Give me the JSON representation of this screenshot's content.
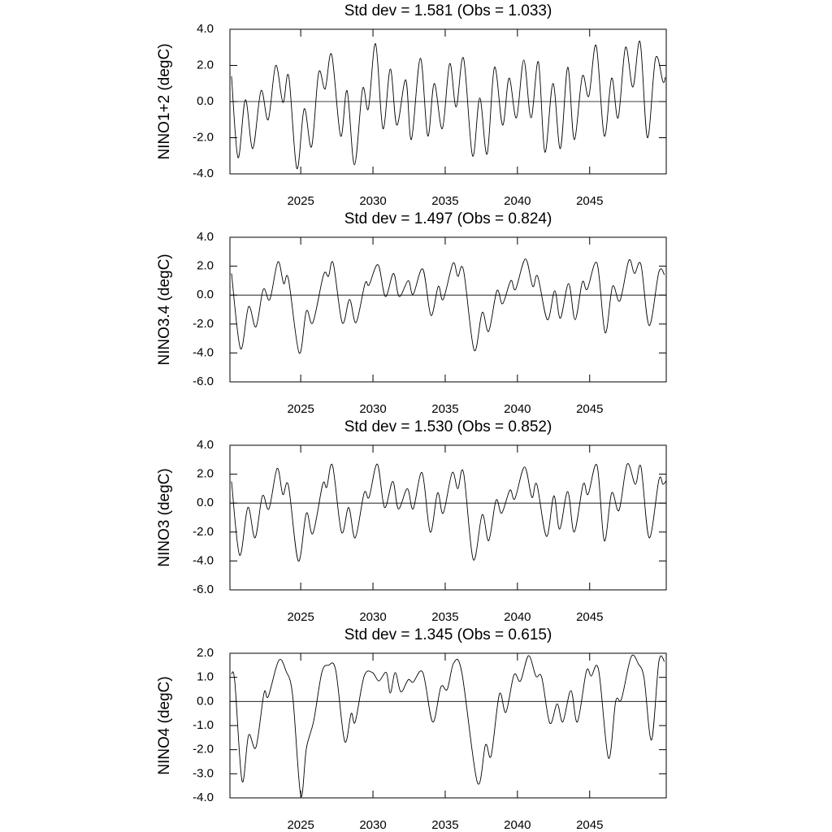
{
  "chart_data": [
    {
      "type": "line",
      "title": "Std dev = 1.581 (Obs = 1.033)",
      "y_label": "NINO1+2 (degC)",
      "color": "#000000",
      "xlim": [
        2020.1,
        2050.3
      ],
      "ylim": [
        -4,
        4
      ],
      "hline": 0,
      "xticks": [
        2025,
        2030,
        2035,
        2040,
        2045
      ],
      "yticks": [
        {
          "value": -4,
          "label": "-4.0"
        },
        {
          "value": -2,
          "label": "-2.0"
        },
        {
          "value": 0,
          "label": "0.0"
        },
        {
          "value": 2,
          "label": "2.0"
        },
        {
          "value": 4,
          "label": "4.0"
        }
      ],
      "x": [
        2020.21,
        2020.66,
        2021.17,
        2021.68,
        2022.25,
        2022.75,
        2023.27,
        2023.77,
        2024.17,
        2024.73,
        2025.24,
        2025.75,
        2026.24,
        2026.69,
        2027.14,
        2027.76,
        2028.21,
        2028.72,
        2029.28,
        2029.68,
        2030.18,
        2030.69,
        2031.2,
        2031.65,
        2032.27,
        2032.66,
        2033.28,
        2033.79,
        2034.24,
        2034.8,
        2035.31,
        2035.76,
        2036.27,
        2036.89,
        2037.39,
        2037.9,
        2038.41,
        2038.97,
        2039.42,
        2039.93,
        2040.44,
        2040.94,
        2041.45,
        2041.9,
        2042.46,
        2042.97,
        2043.48,
        2043.93,
        2044.49,
        2044.94,
        2045.45,
        2046.01,
        2046.52,
        2046.97,
        2047.48,
        2047.99,
        2048.49,
        2049.0,
        2049.56,
        2050.07,
        2050.24
      ],
      "values": [
        1.4,
        -3.1,
        0.1,
        -2.6,
        0.6,
        -1.0,
        2.0,
        -0.05,
        1.4,
        -3.7,
        -0.4,
        -2.5,
        1.6,
        0.7,
        2.6,
        -1.9,
        0.6,
        -3.5,
        0.7,
        -0.4,
        3.2,
        -1.5,
        1.8,
        -1.3,
        1.2,
        -2.1,
        2.4,
        -1.9,
        1.0,
        -1.5,
        2.1,
        -0.3,
        2.4,
        -3.0,
        0.2,
        -2.9,
        1.9,
        -1.3,
        1.3,
        -0.9,
        2.3,
        -0.9,
        2.2,
        -2.8,
        1.0,
        -2.6,
        1.9,
        -2.1,
        1.4,
        0.3,
        3.1,
        -1.9,
        1.3,
        -0.9,
        3.0,
        0.8,
        3.3,
        -2.0,
        2.4,
        1.1,
        1.35
      ]
    },
    {
      "type": "line",
      "title": "Std dev = 1.497 (Obs = 0.824)",
      "y_label": "NINO3.4 (degC)",
      "color": "#000000",
      "xlim": [
        2020.1,
        2050.3
      ],
      "ylim": [
        -6,
        4
      ],
      "hline": 0,
      "xticks": [
        2025,
        2030,
        2035,
        2040,
        2045
      ],
      "yticks": [
        {
          "value": -6,
          "label": "-6.0"
        },
        {
          "value": -4,
          "label": "-4.0"
        },
        {
          "value": -2,
          "label": "-2.0"
        },
        {
          "value": 0,
          "label": "0.0"
        },
        {
          "value": 2,
          "label": "2.0"
        },
        {
          "value": 4,
          "label": "4.0"
        }
      ],
      "x": [
        2020.21,
        2020.83,
        2021.39,
        2021.9,
        2022.41,
        2022.86,
        2023.42,
        2023.82,
        2024.15,
        2024.89,
        2025.39,
        2025.84,
        2026.58,
        2026.92,
        2027.25,
        2027.87,
        2028.38,
        2028.83,
        2029.45,
        2029.73,
        2030.35,
        2030.86,
        2031.42,
        2031.82,
        2032.44,
        2032.78,
        2033.45,
        2034.01,
        2034.52,
        2034.86,
        2035.54,
        2035.87,
        2036.27,
        2037.0,
        2037.56,
        2038.01,
        2038.58,
        2038.97,
        2039.54,
        2039.87,
        2040.55,
        2041.06,
        2041.4,
        2042.07,
        2042.58,
        2042.97,
        2043.54,
        2043.99,
        2044.49,
        2044.83,
        2045.51,
        2046.07,
        2046.58,
        2047.09,
        2047.71,
        2048.1,
        2048.55,
        2049.12,
        2049.79,
        2050.18
      ],
      "values": [
        1.5,
        -3.7,
        -0.8,
        -2.2,
        0.4,
        -0.3,
        2.3,
        0.8,
        1.1,
        -4.0,
        -1.1,
        -1.9,
        1.4,
        1.3,
        2.2,
        -1.9,
        -0.3,
        -1.9,
        0.8,
        0.7,
        2.1,
        -0.1,
        1.5,
        -0.1,
        1.0,
        0.05,
        1.8,
        -1.4,
        0.6,
        -0.3,
        2.2,
        1.3,
        1.7,
        -3.8,
        -1.2,
        -2.5,
        0.3,
        -0.6,
        1.0,
        0.4,
        2.5,
        0.6,
        1.3,
        -1.7,
        0.3,
        -1.6,
        0.8,
        -1.7,
        0.9,
        0.4,
        2.2,
        -2.6,
        0.6,
        -0.4,
        2.4,
        1.5,
        2.1,
        -2.1,
        1.6,
        1.4
      ]
    },
    {
      "type": "line",
      "title": "Std dev = 1.530 (Obs = 0.852)",
      "y_label": "NINO3 (degC)",
      "color": "#000000",
      "xlim": [
        2020.1,
        2050.3
      ],
      "ylim": [
        -6,
        4
      ],
      "hline": 0,
      "xticks": [
        2025,
        2030,
        2035,
        2040,
        2045
      ],
      "yticks": [
        {
          "value": -6,
          "label": "-6.0"
        },
        {
          "value": -4,
          "label": "-4.0"
        },
        {
          "value": -2,
          "label": "-2.0"
        },
        {
          "value": 0,
          "label": "0.0"
        },
        {
          "value": 2,
          "label": "2.0"
        },
        {
          "value": 4,
          "label": "4.0"
        }
      ],
      "x": [
        2020.21,
        2020.77,
        2021.34,
        2021.84,
        2022.35,
        2022.8,
        2023.37,
        2023.76,
        2024.15,
        2024.83,
        2025.39,
        2025.84,
        2026.52,
        2026.8,
        2027.2,
        2027.82,
        2028.32,
        2028.77,
        2029.39,
        2029.73,
        2030.3,
        2030.8,
        2031.37,
        2031.76,
        2032.38,
        2032.78,
        2033.4,
        2033.96,
        2034.47,
        2034.86,
        2035.48,
        2035.87,
        2036.27,
        2036.94,
        2037.56,
        2038.01,
        2038.52,
        2038.91,
        2039.48,
        2039.82,
        2040.49,
        2041.0,
        2041.34,
        2042.01,
        2042.52,
        2042.92,
        2043.48,
        2043.93,
        2044.55,
        2044.89,
        2045.51,
        2046.01,
        2046.52,
        2047.03,
        2047.6,
        2048.16,
        2048.55,
        2049.12,
        2049.79,
        2050.07,
        2050.3
      ],
      "values": [
        1.5,
        -3.6,
        -0.3,
        -2.4,
        0.5,
        -0.4,
        2.4,
        0.6,
        1.2,
        -4.0,
        -0.7,
        -2.1,
        1.3,
        1.1,
        2.6,
        -2.0,
        -0.3,
        -2.4,
        0.7,
        0.4,
        2.7,
        -0.3,
        1.5,
        -0.4,
        1.0,
        -0.4,
        2.1,
        -2.0,
        0.7,
        -0.7,
        2.1,
        1.0,
        2.1,
        -3.9,
        -0.8,
        -2.6,
        0.2,
        -0.7,
        0.9,
        0.3,
        2.5,
        0.4,
        1.3,
        -2.3,
        0.5,
        -1.8,
        0.8,
        -2.0,
        1.3,
        0.6,
        2.6,
        -2.6,
        0.7,
        -0.5,
        2.7,
        1.3,
        2.5,
        -2.4,
        1.6,
        1.3,
        1.55
      ]
    },
    {
      "type": "line",
      "title": "Std dev = 1.345 (Obs = 0.615)",
      "y_label": "NINO4 (degC)",
      "color": "#000000",
      "xlim": [
        2020.1,
        2050.3
      ],
      "ylim": [
        -4,
        2
      ],
      "hline": 0,
      "xticks": [
        2025,
        2030,
        2035,
        2040,
        2045
      ],
      "yticks": [
        {
          "value": -4,
          "label": "-4.0"
        },
        {
          "value": -3,
          "label": "-3.0"
        },
        {
          "value": -2,
          "label": "-2.0"
        },
        {
          "value": -1,
          "label": "-1.0"
        },
        {
          "value": 0,
          "label": "0.0"
        },
        {
          "value": 1,
          "label": "1.0"
        },
        {
          "value": 2,
          "label": "2.0"
        }
      ],
      "x": [
        2020.21,
        2020.44,
        2020.94,
        2021.39,
        2021.9,
        2022.46,
        2022.75,
        2023.48,
        2023.99,
        2024.44,
        2025.0,
        2025.39,
        2025.9,
        2026.46,
        2026.92,
        2027.42,
        2028.04,
        2028.49,
        2028.77,
        2029.39,
        2029.96,
        2030.41,
        2030.92,
        2031.2,
        2031.54,
        2031.93,
        2032.44,
        2032.78,
        2033.45,
        2034.13,
        2034.7,
        2035.14,
        2035.59,
        2036.15,
        2037.22,
        2037.79,
        2038.18,
        2038.75,
        2039.2,
        2039.76,
        2040.21,
        2040.77,
        2041.28,
        2041.68,
        2042.24,
        2042.75,
        2043.14,
        2043.7,
        2044.15,
        2044.77,
        2045.11,
        2045.62,
        2046.3,
        2046.8,
        2047.2,
        2047.87,
        2048.38,
        2048.77,
        2049.28,
        2049.79,
        2050.18
      ],
      "values": [
        1.15,
        0.8,
        -3.3,
        -1.4,
        -1.9,
        0.35,
        0.2,
        1.7,
        1.25,
        0.25,
        -3.9,
        -1.95,
        -0.8,
        1.2,
        1.5,
        1.3,
        -1.65,
        -0.5,
        -0.85,
        1.05,
        1.2,
        0.85,
        1.2,
        0.35,
        1.2,
        0.4,
        0.9,
        0.8,
        1.2,
        -0.85,
        0.6,
        0.5,
        1.6,
        1.2,
        -3.35,
        -1.8,
        -2.25,
        0.3,
        -0.45,
        1.1,
        0.85,
        1.9,
        1.05,
        1.0,
        -0.9,
        -0.1,
        -0.85,
        0.45,
        -0.85,
        1.25,
        1.05,
        1.3,
        -2.35,
        0.0,
        0.1,
        1.85,
        1.55,
        0.95,
        -1.6,
        1.65,
        1.65
      ]
    }
  ]
}
